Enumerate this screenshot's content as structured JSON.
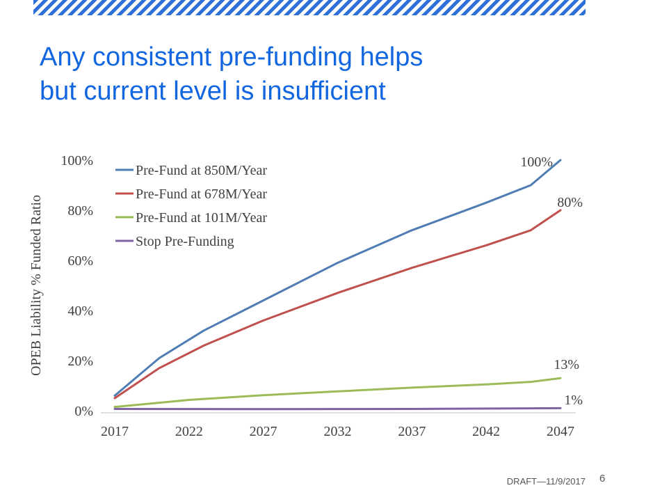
{
  "slide": {
    "title_lines": [
      "Any consistent pre-funding helps",
      "but current level is insufficient"
    ],
    "footer_draft": "DRAFT—11/9/2017",
    "page_number": "6",
    "accent_color": "#1266e0"
  },
  "chart_data": {
    "type": "line",
    "ylabel": "OPEB Liability % Funded Ratio",
    "xlabel": "",
    "xlim": [
      2017,
      2047
    ],
    "ylim": [
      0,
      100
    ],
    "x_ticks": [
      2017,
      2022,
      2027,
      2032,
      2037,
      2042,
      2047
    ],
    "x_tick_labels": [
      "2017",
      "2022",
      "2027",
      "2032",
      "2037",
      "2042",
      "2047"
    ],
    "y_ticks": [
      0,
      20,
      40,
      60,
      80,
      100
    ],
    "y_tick_labels": [
      "0%",
      "20%",
      "40%",
      "60%",
      "80%",
      "100%"
    ],
    "grid": false,
    "legend_position": "top-left",
    "series": [
      {
        "name": "Pre-Fund at 850M/Year",
        "color": "#4f7db3",
        "x": [
          2017,
          2020,
          2023,
          2027,
          2032,
          2037,
          2042,
          2045,
          2047
        ],
        "y": [
          6,
          21,
          32,
          44,
          59,
          72,
          83,
          90,
          100
        ],
        "end_label": "100%"
      },
      {
        "name": "Pre-Fund at 678M/Year",
        "color": "#c0504d",
        "x": [
          2017,
          2020,
          2023,
          2027,
          2032,
          2037,
          2042,
          2045,
          2047
        ],
        "y": [
          5,
          17,
          26,
          36,
          47,
          57,
          66,
          72,
          80
        ],
        "end_label": "80%"
      },
      {
        "name": "Pre-Fund at 101M/Year",
        "color": "#9bbb59",
        "x": [
          2017,
          2022,
          2027,
          2032,
          2037,
          2042,
          2045,
          2047
        ],
        "y": [
          1.5,
          4.3,
          6.2,
          7.7,
          9.2,
          10.5,
          11.5,
          13
        ],
        "end_label": "13%"
      },
      {
        "name": "Stop Pre-Funding",
        "color": "#8064a2",
        "x": [
          2017,
          2027,
          2037,
          2047
        ],
        "y": [
          0.7,
          0.6,
          0.7,
          1
        ],
        "end_label": "1%"
      }
    ]
  }
}
